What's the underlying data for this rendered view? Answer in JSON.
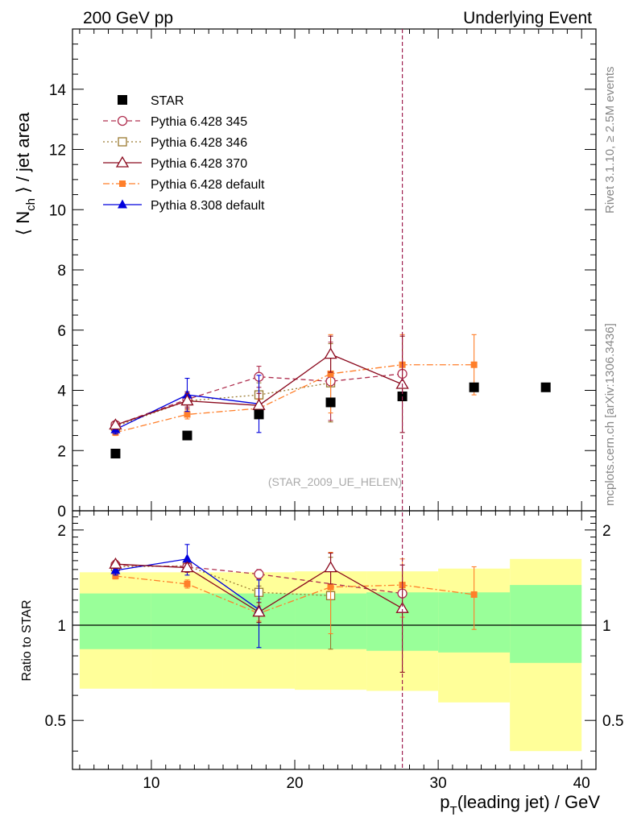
{
  "header": {
    "left": "200 GeV pp",
    "right": "Underlying Event"
  },
  "side_labels": {
    "rivet": "Rivet 3.1.10, ≥ 2.5M events",
    "mcplots": "mcplots.cern.ch [arXiv:1306.3436]"
  },
  "watermark": "(STAR_2009_UE_HELEN)",
  "colors": {
    "star": "#000000",
    "p345": "#b03050",
    "p346": "#9a7a30",
    "p370": "#8b0a1e",
    "pdefault": "#ff7f2a",
    "p8": "#0000dd",
    "band_outer": "#ffff99",
    "band_inner": "#99ff99",
    "vline": "#a02050"
  },
  "chart_data": [
    {
      "type": "scatter",
      "panel": "main",
      "xlabel": "p_T(leading jet) / GeV",
      "ylabel": "⟨ N_ch ⟩ / jet area",
      "xlim": [
        4.5,
        41
      ],
      "ylim": [
        0,
        16
      ],
      "xticks": [
        10,
        20,
        30,
        40
      ],
      "yticks": [
        0,
        2,
        4,
        6,
        8,
        10,
        12,
        14
      ],
      "ytick_labels": [
        "0",
        "2",
        "4",
        "6",
        "8",
        "10",
        "12",
        "14"
      ],
      "vline_x": 27.5,
      "legend_position": "top-left",
      "series": [
        {
          "key": "star",
          "name": "STAR",
          "marker": "square-filled",
          "line": "none",
          "x": [
            7.5,
            12.5,
            17.5,
            22.5,
            27.5,
            32.5,
            37.5
          ],
          "y": [
            1.9,
            2.5,
            3.2,
            3.6,
            3.8,
            4.1,
            4.1
          ],
          "err": [
            0,
            0,
            0,
            0,
            0,
            0,
            0
          ]
        },
        {
          "key": "p345",
          "name": "Pythia 6.428 345",
          "marker": "circle-open",
          "line": "dashed",
          "x": [
            7.5,
            12.5,
            17.5,
            22.5,
            27.5
          ],
          "y": [
            2.85,
            3.7,
            4.45,
            4.3,
            4.55
          ],
          "err": [
            0.1,
            0.25,
            0.35,
            1.3,
            0
          ]
        },
        {
          "key": "p346",
          "name": "Pythia 6.428 346",
          "marker": "square-open",
          "line": "dotted",
          "x": [
            7.5,
            12.5,
            17.5,
            22.5
          ],
          "y": [
            2.8,
            3.65,
            3.85,
            4.25
          ],
          "err": [
            0.1,
            0.3,
            0.4,
            1.3
          ]
        },
        {
          "key": "p370",
          "name": "Pythia 6.428 370",
          "marker": "triangle-open",
          "line": "solid",
          "x": [
            7.5,
            12.5,
            17.5,
            22.5,
            27.5
          ],
          "y": [
            2.85,
            3.65,
            3.5,
            5.2,
            4.2
          ],
          "err": [
            0.1,
            0.25,
            0.4,
            0.6,
            1.6
          ]
        },
        {
          "key": "pdefault",
          "name": "Pythia 6.428 default",
          "marker": "square-filled-small",
          "line": "dashdot",
          "x": [
            7.5,
            12.5,
            17.5,
            22.5,
            27.5,
            32.5
          ],
          "y": [
            2.6,
            3.2,
            3.4,
            4.55,
            4.85,
            4.85
          ],
          "err": [
            0.1,
            0.15,
            0.3,
            1.3,
            1.0,
            1.0
          ]
        },
        {
          "key": "p8",
          "name": "Pythia 8.308 default",
          "marker": "triangle-filled",
          "line": "solid",
          "x": [
            7.5,
            12.5,
            17.5
          ],
          "y": [
            2.7,
            3.85,
            3.55
          ],
          "err": [
            0.15,
            0.55,
            0.95
          ]
        }
      ]
    },
    {
      "type": "scatter",
      "panel": "ratio",
      "ylabel": "Ratio to STAR",
      "xlim": [
        4.5,
        41
      ],
      "ylim": [
        0.35,
        2.3
      ],
      "yscale": "log",
      "yticks": [
        0.5,
        1,
        2
      ],
      "ytick_labels": [
        "0.5",
        "1",
        "2"
      ],
      "minor_yticks": [
        0.4,
        0.6,
        0.7,
        0.8,
        0.9,
        1.1,
        1.2,
        1.3,
        1.4,
        1.5,
        1.6,
        1.7,
        1.8,
        1.9,
        2.1,
        2.2
      ],
      "hline_y": 1,
      "bands": [
        {
          "x0": 5,
          "x1": 10,
          "outer": [
            0.63,
            1.47
          ],
          "inner": [
            0.84,
            1.26
          ]
        },
        {
          "x0": 10,
          "x1": 15,
          "outer": [
            0.63,
            1.47
          ],
          "inner": [
            0.84,
            1.26
          ]
        },
        {
          "x0": 15,
          "x1": 20,
          "outer": [
            0.63,
            1.47
          ],
          "inner": [
            0.84,
            1.26
          ]
        },
        {
          "x0": 20,
          "x1": 25,
          "outer": [
            0.625,
            1.48
          ],
          "inner": [
            0.84,
            1.26
          ]
        },
        {
          "x0": 25,
          "x1": 30,
          "outer": [
            0.62,
            1.48
          ],
          "inner": [
            0.83,
            1.27
          ]
        },
        {
          "x0": 30,
          "x1": 35,
          "outer": [
            0.57,
            1.51
          ],
          "inner": [
            0.82,
            1.27
          ]
        },
        {
          "x0": 35,
          "x1": 40,
          "outer": [
            0.4,
            1.62
          ],
          "inner": [
            0.76,
            1.34
          ]
        }
      ],
      "series": [
        {
          "key": "p345",
          "x": [
            7.5,
            12.5,
            17.5,
            27.5
          ],
          "y": [
            1.55,
            1.53,
            1.45,
            1.26
          ],
          "err": [
            0.04,
            0.05,
            0.05,
            0
          ]
        },
        {
          "key": "p346",
          "x": [
            7.5,
            12.5,
            17.5,
            22.5
          ],
          "y": [
            1.53,
            1.54,
            1.27,
            1.24
          ],
          "err": [
            0.04,
            0.05,
            0.06,
            0.4
          ]
        },
        {
          "key": "p370",
          "x": [
            7.5,
            12.5,
            17.5,
            22.5,
            27.5
          ],
          "y": [
            1.56,
            1.52,
            1.1,
            1.52,
            1.13
          ],
          "err": [
            0.04,
            0.05,
            0.08,
            0.17,
            0.42
          ]
        },
        {
          "key": "pdefault",
          "x": [
            7.5,
            12.5,
            17.5,
            22.5,
            27.5,
            32.5
          ],
          "y": [
            1.43,
            1.35,
            1.09,
            1.32,
            1.34,
            1.25
          ],
          "err": [
            0.03,
            0.04,
            0.06,
            0.38,
            0.28,
            0.28
          ]
        },
        {
          "key": "p8",
          "x": [
            7.5,
            12.5,
            17.5
          ],
          "y": [
            1.49,
            1.62,
            1.12
          ],
          "err": [
            0.05,
            0.18,
            0.27
          ]
        }
      ]
    }
  ]
}
